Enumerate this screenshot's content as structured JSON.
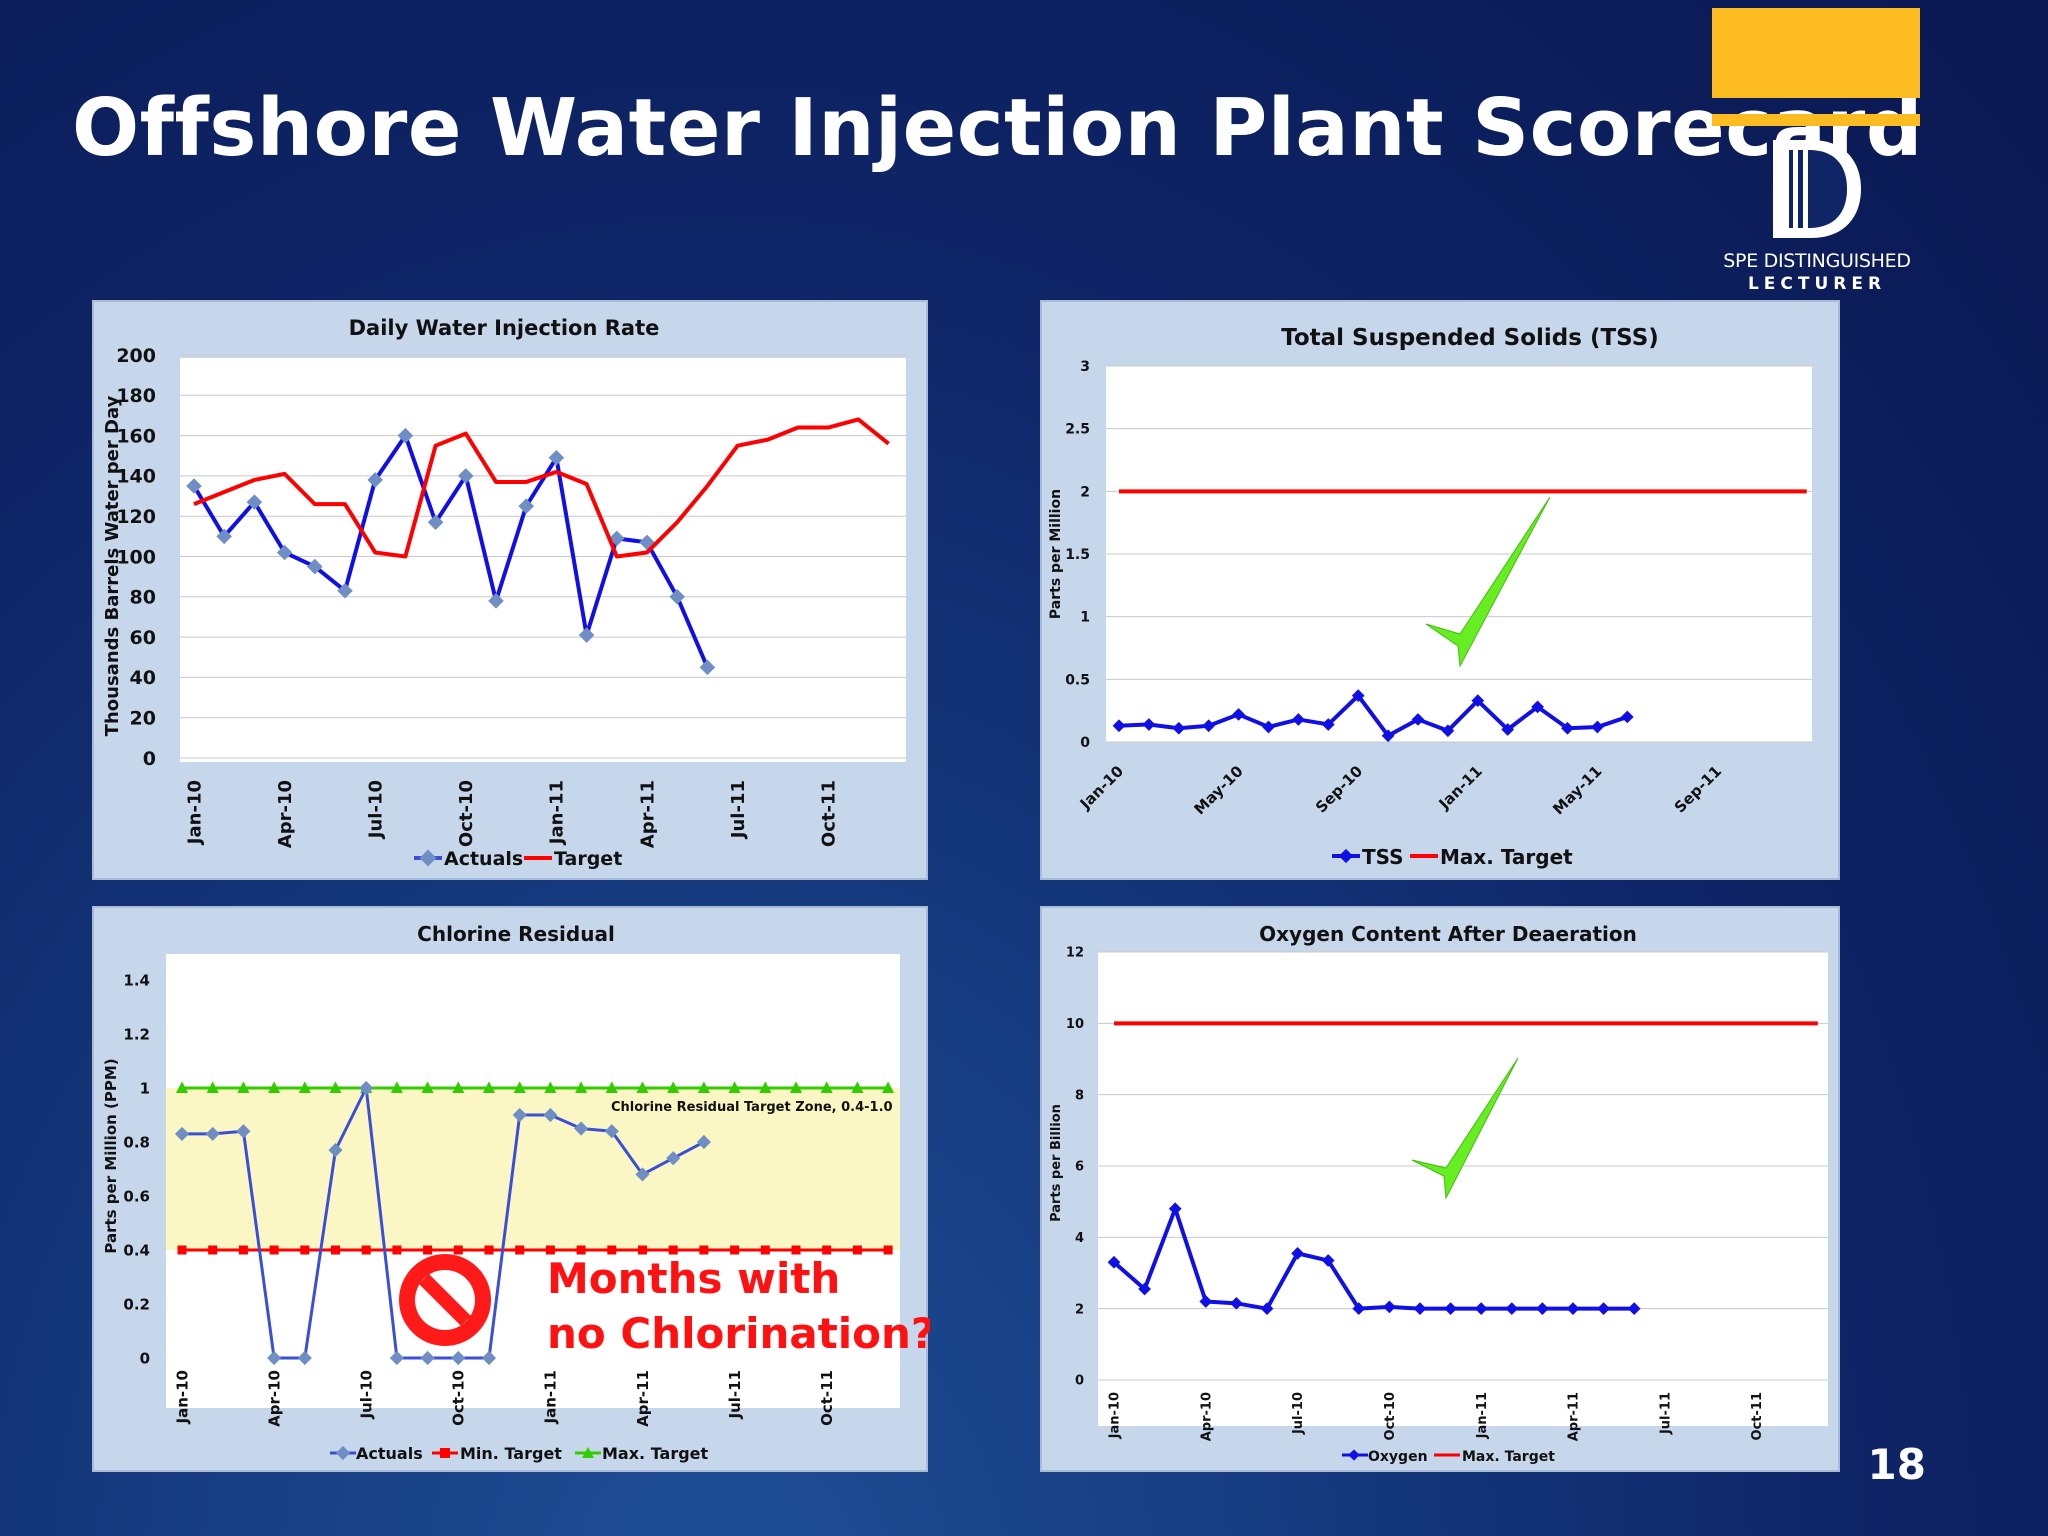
{
  "slide": {
    "title": "Offshore Water Injection Plant Scorecard",
    "page_number": "18"
  },
  "logo": {
    "line1": "SPE DISTINGUISHED",
    "line2": "LECTURER"
  },
  "colors": {
    "actual_blue": "#1010e6",
    "actual_steel": "#3a4fd6",
    "marker_steel": "#6f8fc4",
    "target_red": "#ff0000",
    "max_green": "#33cc00",
    "zone_yellow": "#fbf7c4",
    "check_green": "#66ee22",
    "panel_bg": "#c6d7ec"
  },
  "chart_data": [
    {
      "type": "line",
      "title": "Daily Water Injection Rate",
      "ylabel": "Thousands Barrels Water per Day",
      "ylim": [
        0,
        200
      ],
      "yticks": [
        "200",
        "180",
        "160",
        "140",
        "120",
        "100",
        "80",
        "60",
        "40",
        "20",
        "0"
      ],
      "xtick_labels": [
        "Jan-10",
        "Apr-10",
        "Jul-10",
        "Oct-10",
        "Jan-11",
        "Apr-11",
        "Jul-11",
        "Oct-11"
      ],
      "legend": {
        "position": "bottom",
        "entries": [
          "Actuals",
          "Target"
        ]
      },
      "grid": true,
      "series": [
        {
          "name": "Actuals",
          "values": [
            135,
            110,
            127,
            102,
            95,
            83,
            138,
            160,
            117,
            140,
            78,
            125,
            149,
            61,
            109,
            107,
            80,
            45
          ]
        },
        {
          "name": "Target",
          "values": [
            126,
            132,
            138,
            141,
            126,
            126,
            102,
            100,
            155,
            161,
            137,
            137,
            142,
            136,
            100,
            102,
            117,
            135,
            155,
            158,
            164,
            164,
            168,
            156
          ]
        }
      ]
    },
    {
      "type": "line",
      "title": "Total Suspended Solids (TSS)",
      "ylabel": "Parts per Million",
      "ylim": [
        0,
        3
      ],
      "yticks": [
        "3",
        "2.5",
        "2",
        "1.5",
        "1",
        "0.5",
        "0"
      ],
      "xtick_labels": [
        "Jan-10",
        "May-10",
        "Sep-10",
        "Jan-11",
        "May-11",
        "Sep-11"
      ],
      "legend": {
        "position": "bottom",
        "entries": [
          "TSS",
          "Max. Target"
        ]
      },
      "grid": true,
      "series": [
        {
          "name": "TSS",
          "values": [
            0.13,
            0.14,
            0.11,
            0.13,
            0.22,
            0.12,
            0.18,
            0.14,
            0.37,
            0.05,
            0.18,
            0.09,
            0.33,
            0.1,
            0.28,
            0.11,
            0.12,
            0.2
          ]
        },
        {
          "name": "Max. Target",
          "values": [
            2,
            2,
            2,
            2,
            2,
            2,
            2,
            2,
            2,
            2,
            2,
            2,
            2,
            2,
            2,
            2,
            2,
            2,
            2,
            2,
            2,
            2,
            2,
            2
          ]
        }
      ]
    },
    {
      "type": "line",
      "title": "Chlorine Residual",
      "ylabel": "Parts per Million (PPM)",
      "ylim": [
        0,
        1.4
      ],
      "yticks": [
        "1.4",
        "1.2",
        "1",
        "0.8",
        "0.6",
        "0.4",
        "0.2",
        "0"
      ],
      "xtick_labels": [
        "Jan-10",
        "Apr-10",
        "Jul-10",
        "Oct-10",
        "Jan-11",
        "Apr-11",
        "Jul-11",
        "Oct-11"
      ],
      "legend": {
        "position": "bottom",
        "entries": [
          "Actuals",
          "Min. Target",
          "Max. Target"
        ]
      },
      "grid": false,
      "target_zone": {
        "label": "Chlorine Residual Target Zone, 0.4-1.0",
        "min": 0.4,
        "max": 1.0
      },
      "callout": {
        "line1": "Months with",
        "line2": "no Chlorination?"
      },
      "series": [
        {
          "name": "Actuals",
          "values": [
            0.83,
            0.83,
            0.84,
            0,
            0,
            0.77,
            1.0,
            0,
            0,
            0,
            0,
            0.9,
            0.9,
            0.85,
            0.84,
            0.68,
            0.74,
            0.8
          ]
        },
        {
          "name": "Min. Target",
          "values": [
            0.4,
            0.4,
            0.4,
            0.4,
            0.4,
            0.4,
            0.4,
            0.4,
            0.4,
            0.4,
            0.4,
            0.4,
            0.4,
            0.4,
            0.4,
            0.4,
            0.4,
            0.4,
            0.4,
            0.4,
            0.4,
            0.4,
            0.4,
            0.4
          ]
        },
        {
          "name": "Max. Target",
          "values": [
            1,
            1,
            1,
            1,
            1,
            1,
            1,
            1,
            1,
            1,
            1,
            1,
            1,
            1,
            1,
            1,
            1,
            1,
            1,
            1,
            1,
            1,
            1,
            1
          ]
        }
      ]
    },
    {
      "type": "line",
      "title": "Oxygen Content After Deaeration",
      "ylabel": "Parts per Billion",
      "ylim": [
        0,
        12
      ],
      "yticks": [
        "12",
        "10",
        "8",
        "6",
        "4",
        "2",
        "0"
      ],
      "xtick_labels": [
        "Jan-10",
        "Apr-10",
        "Jul-10",
        "Oct-10",
        "Jan-11",
        "Apr-11",
        "Jul-11",
        "Oct-11"
      ],
      "legend": {
        "position": "bottom",
        "entries": [
          "Oxygen",
          "Max. Target"
        ]
      },
      "grid": true,
      "series": [
        {
          "name": "Oxygen",
          "values": [
            3.3,
            2.55,
            4.8,
            2.2,
            2.15,
            2.0,
            3.55,
            3.35,
            2.0,
            2.05,
            2.0,
            2.0,
            2.0,
            2.0,
            2.0,
            2.0,
            2.0,
            2.0
          ]
        },
        {
          "name": "Max. Target",
          "values": [
            10,
            10,
            10,
            10,
            10,
            10,
            10,
            10,
            10,
            10,
            10,
            10,
            10,
            10,
            10,
            10,
            10,
            10,
            10,
            10,
            10,
            10,
            10,
            10
          ]
        }
      ]
    }
  ]
}
